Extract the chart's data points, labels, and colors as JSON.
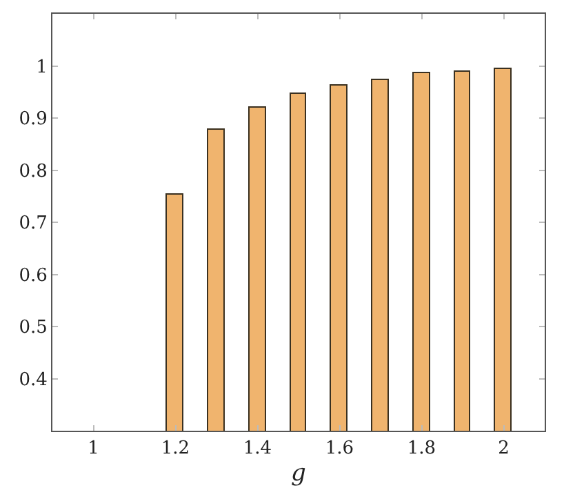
{
  "chart_data": {
    "type": "bar",
    "xlabel": "g",
    "x": [
      1.2,
      1.3,
      1.4,
      1.5,
      1.6,
      1.7,
      1.8,
      1.9,
      2.0
    ],
    "series": [
      {
        "color": "#f0b46e",
        "values": [
          0.754,
          0.877,
          0.919,
          0.947,
          0.963,
          0.974,
          0.985,
          0.989,
          0.993
        ]
      }
    ],
    "xlim": [
      0.9,
      2.1
    ],
    "xticks": [
      1,
      1.2,
      1.4,
      1.6,
      1.8,
      2
    ],
    "ylim": [
      0.3,
      1.1
    ],
    "yticks": [
      0.4,
      0.5,
      0.6,
      0.7,
      0.8,
      0.9,
      1
    ]
  }
}
